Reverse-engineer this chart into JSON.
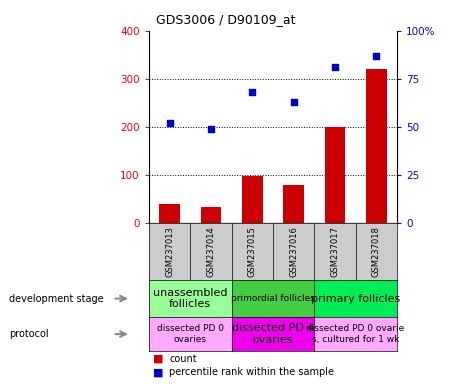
{
  "title": "GDS3006 / D90109_at",
  "samples": [
    "GSM237013",
    "GSM237014",
    "GSM237015",
    "GSM237016",
    "GSM237017",
    "GSM237018"
  ],
  "counts": [
    40,
    32,
    98,
    78,
    200,
    320
  ],
  "percentiles": [
    52,
    49,
    68,
    63,
    81,
    87
  ],
  "ylim_left": [
    0,
    400
  ],
  "ylim_right": [
    0,
    100
  ],
  "yticks_left": [
    0,
    100,
    200,
    300,
    400
  ],
  "yticks_right": [
    0,
    25,
    50,
    75,
    100
  ],
  "bar_color": "#cc0000",
  "scatter_color": "#0000cc",
  "dev_stage_groups": [
    {
      "label": "unassembled\nfollicles",
      "cols": [
        0,
        1
      ],
      "color": "#99ff99",
      "fontsize": 8
    },
    {
      "label": "primordial follicles",
      "cols": [
        2,
        3
      ],
      "color": "#44cc44",
      "fontsize": 6.5
    },
    {
      "label": "primary follicles",
      "cols": [
        4,
        5
      ],
      "color": "#00ee55",
      "fontsize": 8
    }
  ],
  "protocol_groups": [
    {
      "label": "dissected PD 0\novaries",
      "cols": [
        0,
        1
      ],
      "color": "#ffaaff",
      "fontsize": 6.5
    },
    {
      "label": "dissected PD 4\novaries",
      "cols": [
        2,
        3
      ],
      "color": "#ee00ee",
      "fontsize": 8
    },
    {
      "label": "dissected PD 0 ovarie\ns, cultured for 1 wk",
      "cols": [
        4,
        5
      ],
      "color": "#ffaaff",
      "fontsize": 6.5
    }
  ],
  "header_bg": "#cccccc",
  "label_dev_stage": "development stage",
  "label_protocol": "protocol"
}
